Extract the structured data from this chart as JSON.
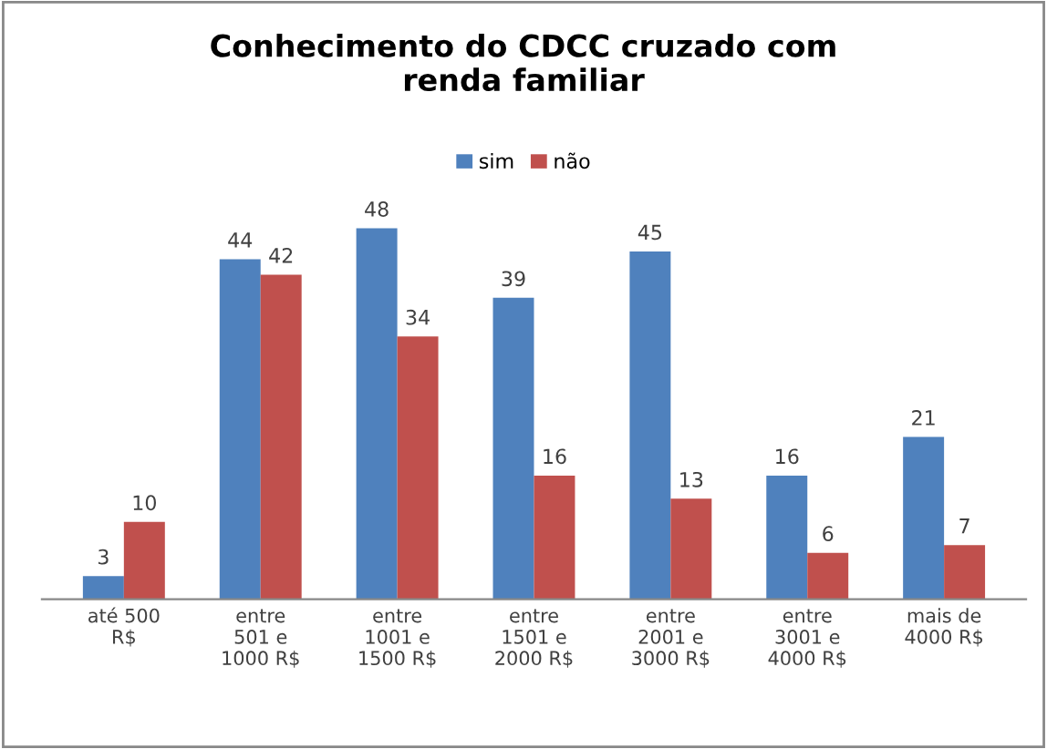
{
  "chart_data": {
    "type": "bar",
    "title": "Conhecimento do CDCC cruzado com\nrenda familiar",
    "categories": [
      "até 500\nR$",
      "entre\n501 e\n1000 R$",
      "entre\n1001 e\n1500 R$",
      "entre\n1501 e\n2000 R$",
      "entre\n2001 e\n3000 R$",
      "entre\n3001 e\n4000 R$",
      "mais de\n4000 R$"
    ],
    "series": [
      {
        "name": "sim",
        "color": "#4f81bd",
        "values": [
          3,
          44,
          48,
          39,
          45,
          16,
          21
        ]
      },
      {
        "name": "não",
        "color": "#c0504d",
        "values": [
          10,
          42,
          34,
          16,
          13,
          6,
          7
        ]
      }
    ],
    "data_labels": true,
    "legend": "top",
    "grid": false
  }
}
